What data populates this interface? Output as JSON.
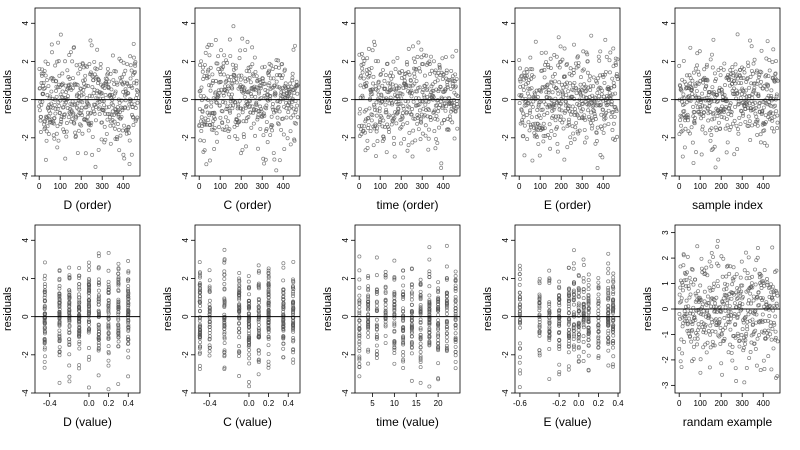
{
  "figure": {
    "background": "#ffffff",
    "point_color": "#555555",
    "zero_line_color": "#000000"
  },
  "chart_data": [
    {
      "type": "scatter",
      "index": 0,
      "xlabel": "D (order)",
      "ylabel": "residuals",
      "xticks": [
        0,
        100,
        200,
        300,
        400
      ],
      "tick_labels": [
        "0",
        "100",
        "200",
        "300",
        "400"
      ],
      "yticks": [
        -4,
        -2,
        0,
        2,
        4
      ],
      "ytick_labels": [
        "-4",
        "-2",
        "0",
        "2",
        "4"
      ],
      "ylim": [
        -4,
        4.8
      ],
      "xlim": [
        -20,
        480
      ],
      "n": 470,
      "x_kind": "order",
      "hline": 0,
      "seed": 11
    },
    {
      "type": "scatter",
      "index": 1,
      "xlabel": "C (order)",
      "ylabel": "residuals",
      "xticks": [
        0,
        100,
        200,
        300,
        400
      ],
      "tick_labels": [
        "0",
        "100",
        "200",
        "300",
        "400"
      ],
      "yticks": [
        -4,
        -2,
        0,
        2,
        4
      ],
      "ytick_labels": [
        "-4",
        "-2",
        "0",
        "2",
        "4"
      ],
      "ylim": [
        -4,
        4.8
      ],
      "xlim": [
        -20,
        480
      ],
      "n": 470,
      "x_kind": "order",
      "hline": 0,
      "seed": 23
    },
    {
      "type": "scatter",
      "index": 2,
      "xlabel": "time (order)",
      "ylabel": "residuals",
      "xticks": [
        0,
        100,
        200,
        300,
        400
      ],
      "tick_labels": [
        "0",
        "100",
        "200",
        "300",
        "400"
      ],
      "yticks": [
        -4,
        -2,
        0,
        2,
        4
      ],
      "ytick_labels": [
        "-4",
        "-2",
        "0",
        "2",
        "4"
      ],
      "ylim": [
        -4,
        4.8
      ],
      "xlim": [
        -20,
        480
      ],
      "n": 470,
      "x_kind": "order",
      "hline": 0,
      "seed": 37
    },
    {
      "type": "scatter",
      "index": 3,
      "xlabel": "E (order)",
      "ylabel": "residuals",
      "xticks": [
        0,
        100,
        200,
        300,
        400
      ],
      "tick_labels": [
        "0",
        "100",
        "200",
        "300",
        "400"
      ],
      "yticks": [
        -4,
        -2,
        0,
        2,
        4
      ],
      "ytick_labels": [
        "-4",
        "-2",
        "0",
        "2",
        "4"
      ],
      "ylim": [
        -4,
        4.8
      ],
      "xlim": [
        -20,
        480
      ],
      "n": 470,
      "x_kind": "order",
      "hline": 0,
      "seed": 41
    },
    {
      "type": "scatter",
      "index": 4,
      "xlabel": "sample index",
      "ylabel": "residuals",
      "xticks": [
        0,
        100,
        200,
        300,
        400
      ],
      "tick_labels": [
        "0",
        "100",
        "200",
        "300",
        "400"
      ],
      "yticks": [
        -4,
        -2,
        0,
        2,
        4
      ],
      "ytick_labels": [
        "-4",
        "-2",
        "0",
        "2",
        "4"
      ],
      "ylim": [
        -4,
        4.8
      ],
      "xlim": [
        -20,
        480
      ],
      "n": 470,
      "x_kind": "order",
      "hline": 0,
      "seed": 53
    },
    {
      "type": "scatter",
      "index": 5,
      "xlabel": "D (value)",
      "ylabel": "residuals",
      "xticks": [
        -0.4,
        0.0,
        0.2,
        0.4
      ],
      "tick_labels": [
        "-0.4",
        "0.0",
        "0.2",
        "0.4"
      ],
      "yticks": [
        -4,
        -2,
        0,
        2,
        4
      ],
      "ytick_labels": [
        "-4",
        "-2",
        "0",
        "2",
        "4"
      ],
      "ylim": [
        -4,
        4.8
      ],
      "xlim": [
        -0.55,
        0.52
      ],
      "n": 470,
      "x_kind": "discrete",
      "x_levels": [
        -0.45,
        -0.3,
        -0.2,
        -0.1,
        0.0,
        0.1,
        0.2,
        0.3,
        0.4
      ],
      "hline": 0,
      "seed": 67
    },
    {
      "type": "scatter",
      "index": 6,
      "xlabel": "C (value)",
      "ylabel": "residuals",
      "xticks": [
        -0.4,
        0.0,
        0.2,
        0.4
      ],
      "tick_labels": [
        "-0.4",
        "0.0",
        "0.2",
        "0.4"
      ],
      "yticks": [
        -4,
        -2,
        0,
        2,
        4
      ],
      "ytick_labels": [
        "-4",
        "-2",
        "0",
        "2",
        "4"
      ],
      "ylim": [
        -4,
        4.8
      ],
      "xlim": [
        -0.55,
        0.52
      ],
      "n": 470,
      "x_kind": "discrete",
      "x_levels": [
        -0.5,
        -0.4,
        -0.25,
        -0.1,
        0.0,
        0.1,
        0.2,
        0.35,
        0.45
      ],
      "hline": 0,
      "seed": 71
    },
    {
      "type": "scatter",
      "index": 7,
      "xlabel": "time (value)",
      "ylabel": "residuals",
      "xticks": [
        5,
        10,
        15,
        20
      ],
      "tick_labels": [
        "5",
        "10",
        "15",
        "20"
      ],
      "yticks": [
        -4,
        -2,
        0,
        2,
        4
      ],
      "ytick_labels": [
        "-4",
        "-2",
        "0",
        "2",
        "4"
      ],
      "ylim": [
        -4,
        4.8
      ],
      "xlim": [
        1,
        25
      ],
      "n": 470,
      "x_kind": "discrete",
      "x_levels": [
        2,
        4,
        6,
        8,
        10,
        12,
        14,
        16,
        18,
        20,
        22,
        24
      ],
      "hline": 0,
      "seed": 83
    },
    {
      "type": "scatter",
      "index": 8,
      "xlabel": "E (value)",
      "ylabel": "residuals",
      "xticks": [
        -0.6,
        -0.2,
        0.0,
        0.2,
        0.4
      ],
      "tick_labels": [
        "-0.6",
        "-0.2",
        "0.0",
        "0.2",
        "0.4"
      ],
      "yticks": [
        -4,
        -2,
        0,
        2,
        4
      ],
      "ytick_labels": [
        "-4",
        "-2",
        "0",
        "2",
        "4"
      ],
      "ylim": [
        -4,
        4.8
      ],
      "xlim": [
        -0.65,
        0.42
      ],
      "n": 470,
      "x_kind": "discrete",
      "x_levels": [
        -0.6,
        -0.4,
        -0.3,
        -0.2,
        -0.1,
        -0.05,
        0.0,
        0.05,
        0.1,
        0.2,
        0.3,
        0.35
      ],
      "hline": 0,
      "seed": 97
    },
    {
      "type": "scatter",
      "index": 9,
      "xlabel": "randam example",
      "ylabel": "residuals",
      "xticks": [
        0,
        100,
        200,
        300,
        400
      ],
      "tick_labels": [
        "0",
        "100",
        "200",
        "300",
        "400"
      ],
      "yticks": [
        -3,
        -2,
        -1,
        0,
        1,
        2,
        3
      ],
      "ytick_labels": [
        "-3",
        "-2",
        "-1",
        "0",
        "1",
        "2",
        "3"
      ],
      "ylim": [
        -3.3,
        3.3
      ],
      "xlim": [
        -20,
        480
      ],
      "n": 470,
      "x_kind": "order",
      "hline": 0,
      "seed": 101
    }
  ]
}
